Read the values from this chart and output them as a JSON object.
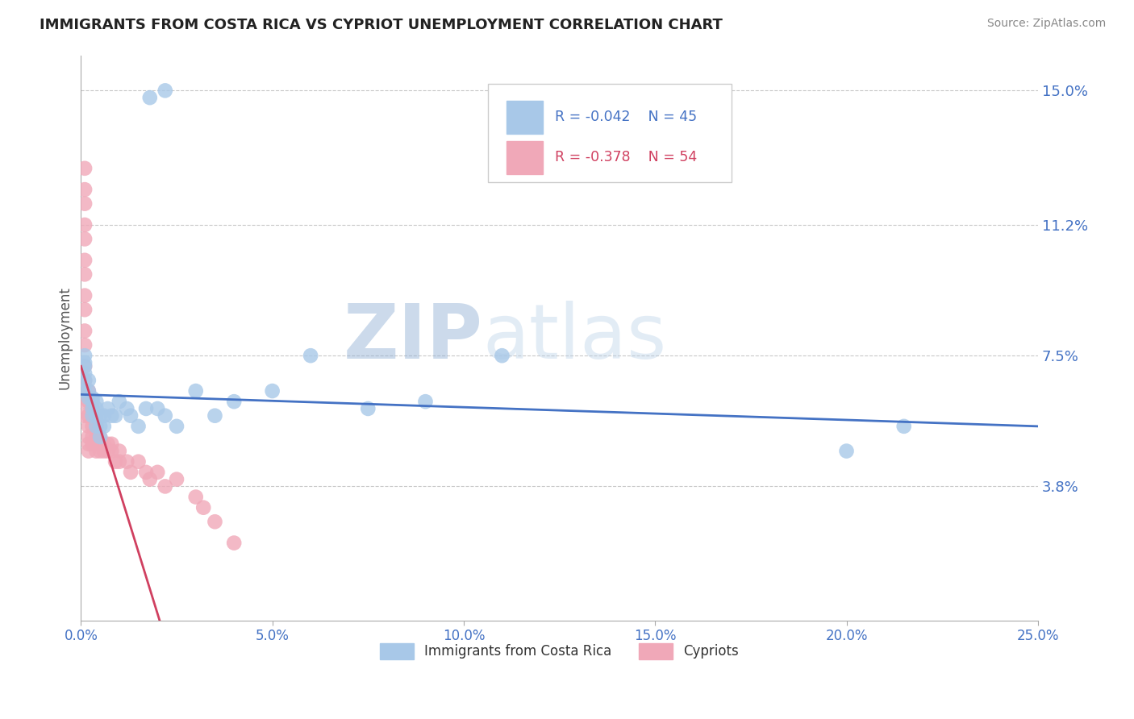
{
  "title": "IMMIGRANTS FROM COSTA RICA VS CYPRIOT UNEMPLOYMENT CORRELATION CHART",
  "source": "Source: ZipAtlas.com",
  "ylabel_label": "Unemployment",
  "xlim": [
    0.0,
    0.25
  ],
  "ylim": [
    0.0,
    0.16
  ],
  "xticks": [
    0.0,
    0.05,
    0.1,
    0.15,
    0.2,
    0.25
  ],
  "xtick_labels": [
    "0.0%",
    "5.0%",
    "10.0%",
    "15.0%",
    "20.0%",
    "25.0%"
  ],
  "ytick_vals": [
    0.038,
    0.075,
    0.112,
    0.15
  ],
  "ytick_labels": [
    "3.8%",
    "7.5%",
    "11.2%",
    "15.0%"
  ],
  "grid_color": "#c8c8c8",
  "background_color": "#ffffff",
  "series1_color": "#a8c8e8",
  "series2_color": "#f0a8b8",
  "line1_color": "#4472c4",
  "line2_color": "#d04060",
  "legend_r1": "R = -0.042",
  "legend_n1": "N = 45",
  "legend_r2": "R = -0.378",
  "legend_n2": "N = 54",
  "label1": "Immigrants from Costa Rica",
  "label2": "Cypriots",
  "watermark_zip": "ZIP",
  "watermark_atlas": "atlas",
  "title_fontsize": 13,
  "tick_label_color": "#4472c4",
  "series1_x": [
    0.018,
    0.022,
    0.001,
    0.001,
    0.001,
    0.001,
    0.001,
    0.001,
    0.002,
    0.002,
    0.002,
    0.003,
    0.003,
    0.003,
    0.003,
    0.004,
    0.004,
    0.004,
    0.004,
    0.005,
    0.005,
    0.005,
    0.006,
    0.006,
    0.007,
    0.008,
    0.009,
    0.01,
    0.012,
    0.013,
    0.015,
    0.017,
    0.02,
    0.022,
    0.025,
    0.03,
    0.035,
    0.04,
    0.05,
    0.06,
    0.075,
    0.09,
    0.11,
    0.2,
    0.215
  ],
  "series1_y": [
    0.148,
    0.15,
    0.075,
    0.073,
    0.072,
    0.07,
    0.068,
    0.065,
    0.068,
    0.065,
    0.063,
    0.063,
    0.062,
    0.06,
    0.058,
    0.062,
    0.06,
    0.058,
    0.055,
    0.058,
    0.055,
    0.052,
    0.058,
    0.055,
    0.06,
    0.058,
    0.058,
    0.062,
    0.06,
    0.058,
    0.055,
    0.06,
    0.06,
    0.058,
    0.055,
    0.065,
    0.058,
    0.062,
    0.065,
    0.075,
    0.06,
    0.062,
    0.075,
    0.048,
    0.055
  ],
  "series2_x": [
    0.001,
    0.001,
    0.001,
    0.001,
    0.001,
    0.001,
    0.001,
    0.001,
    0.001,
    0.001,
    0.001,
    0.001,
    0.001,
    0.001,
    0.001,
    0.002,
    0.002,
    0.002,
    0.002,
    0.002,
    0.002,
    0.002,
    0.003,
    0.003,
    0.003,
    0.003,
    0.003,
    0.004,
    0.004,
    0.004,
    0.005,
    0.005,
    0.005,
    0.006,
    0.006,
    0.007,
    0.007,
    0.008,
    0.008,
    0.009,
    0.01,
    0.01,
    0.012,
    0.013,
    0.015,
    0.017,
    0.018,
    0.02,
    0.022,
    0.025,
    0.03,
    0.032,
    0.035,
    0.04
  ],
  "series2_y": [
    0.128,
    0.122,
    0.118,
    0.112,
    0.108,
    0.102,
    0.098,
    0.092,
    0.088,
    0.082,
    0.078,
    0.072,
    0.068,
    0.062,
    0.058,
    0.065,
    0.062,
    0.058,
    0.055,
    0.052,
    0.05,
    0.048,
    0.06,
    0.058,
    0.055,
    0.052,
    0.05,
    0.055,
    0.052,
    0.048,
    0.052,
    0.05,
    0.048,
    0.05,
    0.048,
    0.05,
    0.048,
    0.05,
    0.048,
    0.045,
    0.048,
    0.045,
    0.045,
    0.042,
    0.045,
    0.042,
    0.04,
    0.042,
    0.038,
    0.04,
    0.035,
    0.032,
    0.028,
    0.022
  ],
  "line1_x_start": 0.0,
  "line1_x_end": 0.25,
  "line1_y_start": 0.064,
  "line1_y_end": 0.055,
  "line2_x_start": 0.0,
  "line2_x_end": 0.022,
  "line2_y_start": 0.072,
  "line2_y_end": -0.005
}
